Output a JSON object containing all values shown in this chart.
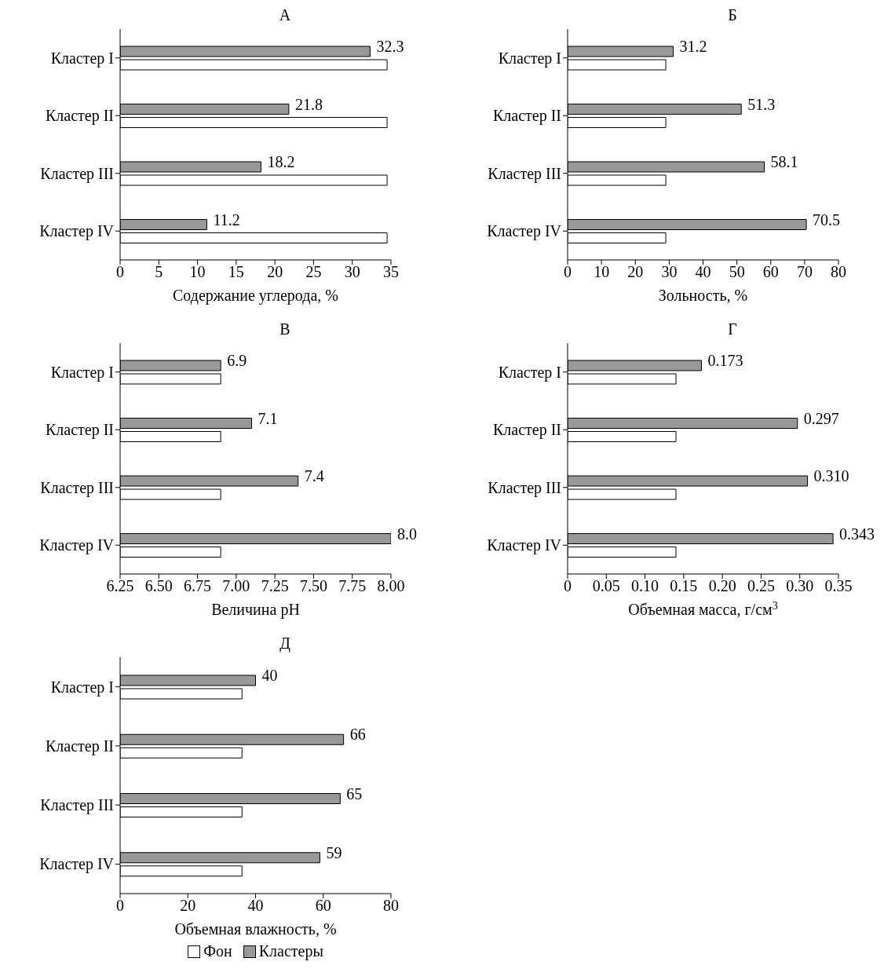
{
  "chart_data": [
    {
      "type": "bar",
      "orientation": "horizontal",
      "title": "А",
      "xlabel": "Содержание углерода, %",
      "categories": [
        "Кластер I",
        "Кластер II",
        "Кластер III",
        "Кластер IV"
      ],
      "xlim": [
        0,
        35
      ],
      "xticks": [
        0,
        5,
        10,
        15,
        20,
        25,
        30,
        35
      ],
      "grid": false,
      "legend": false,
      "series": [
        {
          "color": "#999999",
          "values": [
            32.3,
            21.8,
            18.2,
            11.2
          ],
          "value_labels": [
            "32.3",
            "21.8",
            "18.2",
            "11.2"
          ]
        },
        {
          "color": "#ffffff",
          "values": [
            34.5,
            34.5,
            34.5,
            34.5
          ]
        }
      ]
    },
    {
      "type": "bar",
      "orientation": "horizontal",
      "title": "Б",
      "xlabel": "Зольность, %",
      "categories": [
        "Кластер I",
        "Кластер II",
        "Кластер III",
        "Кластер IV"
      ],
      "xlim": [
        0,
        80
      ],
      "xticks": [
        0,
        10,
        20,
        30,
        40,
        50,
        60,
        70,
        80
      ],
      "grid": false,
      "legend": false,
      "series": [
        {
          "color": "#999999",
          "values": [
            31.2,
            51.3,
            58.1,
            70.5
          ],
          "value_labels": [
            "31.2",
            "51.3",
            "58.1",
            "70.5"
          ]
        },
        {
          "color": "#ffffff",
          "values": [
            29,
            29,
            29,
            29
          ]
        }
      ]
    },
    {
      "type": "bar",
      "orientation": "horizontal",
      "title": "В",
      "xlabel": "Величина pH",
      "categories": [
        "Кластер I",
        "Кластер II",
        "Кластер III",
        "Кластер IV"
      ],
      "xlim": [
        6.25,
        8.0
      ],
      "xticks": [
        6.25,
        {
          "value": 6.5,
          "label": "6.50"
        },
        6.75,
        {
          "value": 7,
          "label": "7.00"
        },
        7.25,
        {
          "value": 7.5,
          "label": "7.50"
        },
        7.75,
        {
          "value": 8,
          "label": "8.00"
        }
      ],
      "grid": false,
      "legend": false,
      "series": [
        {
          "color": "#999999",
          "values": [
            6.9,
            7.1,
            7.4,
            8.0
          ],
          "value_labels": [
            "6.9",
            "7.1",
            "7.4",
            "8.0"
          ]
        },
        {
          "color": "#ffffff",
          "values": [
            6.9,
            6.9,
            6.9,
            6.9
          ]
        }
      ]
    },
    {
      "type": "bar",
      "orientation": "horizontal",
      "title": "Г",
      "xlabel": "Объемная масса, г/см$^{3}$",
      "categories": [
        "Кластер I",
        "Кластер II",
        "Кластер III",
        "Кластер IV"
      ],
      "xlim": [
        0,
        0.35
      ],
      "xticks": [
        0,
        0.05,
        {
          "value": 0.1,
          "label": "0.10"
        },
        0.15,
        {
          "value": 0.2,
          "label": "0.20"
        },
        0.25,
        {
          "value": 0.3,
          "label": "0.30"
        },
        0.35
      ],
      "grid": false,
      "legend": false,
      "series": [
        {
          "color": "#999999",
          "values": [
            0.173,
            0.297,
            0.31,
            0.343
          ],
          "value_labels": [
            "0.173",
            "0.297",
            "0.310",
            "0.343"
          ]
        },
        {
          "color": "#ffffff",
          "values": [
            0.14,
            0.14,
            0.14,
            0.14
          ]
        }
      ]
    },
    {
      "type": "bar",
      "orientation": "horizontal",
      "title": "Д",
      "xlabel": "Объемная влажность, %",
      "categories": [
        "Кластер I",
        "Кластер II",
        "Кластер III",
        "Кластер IV"
      ],
      "xlim": [
        0,
        80
      ],
      "xticks": [
        0,
        20,
        40,
        60,
        80
      ],
      "grid": false,
      "legend": "bottom",
      "series": [
        {
          "name": "Кластеры",
          "color": "#999999",
          "values": [
            40,
            66,
            65,
            59
          ],
          "value_labels": [
            "40",
            "66",
            "65",
            "59"
          ]
        },
        {
          "name": "Фон",
          "color": "#ffffff",
          "values": [
            36,
            36,
            36,
            36
          ]
        }
      ]
    }
  ]
}
